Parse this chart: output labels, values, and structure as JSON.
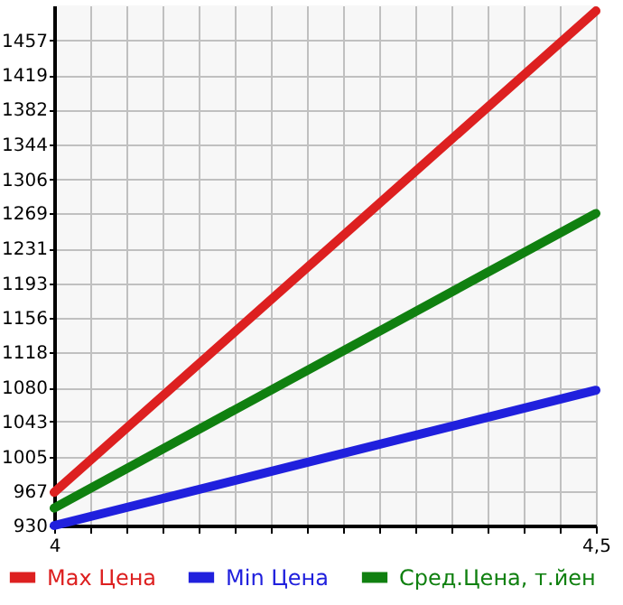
{
  "chart_data": {
    "type": "line",
    "xlim": [
      4,
      4.5
    ],
    "xticks": [
      {
        "value": 4,
        "label": "4"
      },
      {
        "value": 4.0333,
        "label": null
      },
      {
        "value": 4.0667,
        "label": null
      },
      {
        "value": 4.1,
        "label": null
      },
      {
        "value": 4.1333,
        "label": null
      },
      {
        "value": 4.1667,
        "label": null
      },
      {
        "value": 4.2,
        "label": null
      },
      {
        "value": 4.2333,
        "label": null
      },
      {
        "value": 4.2667,
        "label": null
      },
      {
        "value": 4.3,
        "label": null
      },
      {
        "value": 4.3333,
        "label": null
      },
      {
        "value": 4.3667,
        "label": null
      },
      {
        "value": 4.4,
        "label": null
      },
      {
        "value": 4.4333,
        "label": null
      },
      {
        "value": 4.4667,
        "label": null
      },
      {
        "value": 4.5,
        "label": "4,5"
      }
    ],
    "ylim": [
      930,
      1495
    ],
    "yticks": [
      930,
      967,
      1005,
      1043,
      1080,
      1118,
      1156,
      1193,
      1231,
      1269,
      1306,
      1344,
      1382,
      1419,
      1457
    ],
    "x": [
      4,
      4.5
    ],
    "grid": true,
    "legend": "bottom",
    "marker": "none",
    "line_style": "solid",
    "series": [
      {
        "name": "Max Цена",
        "color": "#dd2020",
        "values": [
          966,
          1489
        ]
      },
      {
        "name": "Min Цена",
        "color": "#2020dd",
        "values": [
          930,
          1077
        ]
      },
      {
        "name": "Сред.Цена, т.йен",
        "color": "#108010",
        "values": [
          949,
          1269
        ]
      }
    ]
  }
}
